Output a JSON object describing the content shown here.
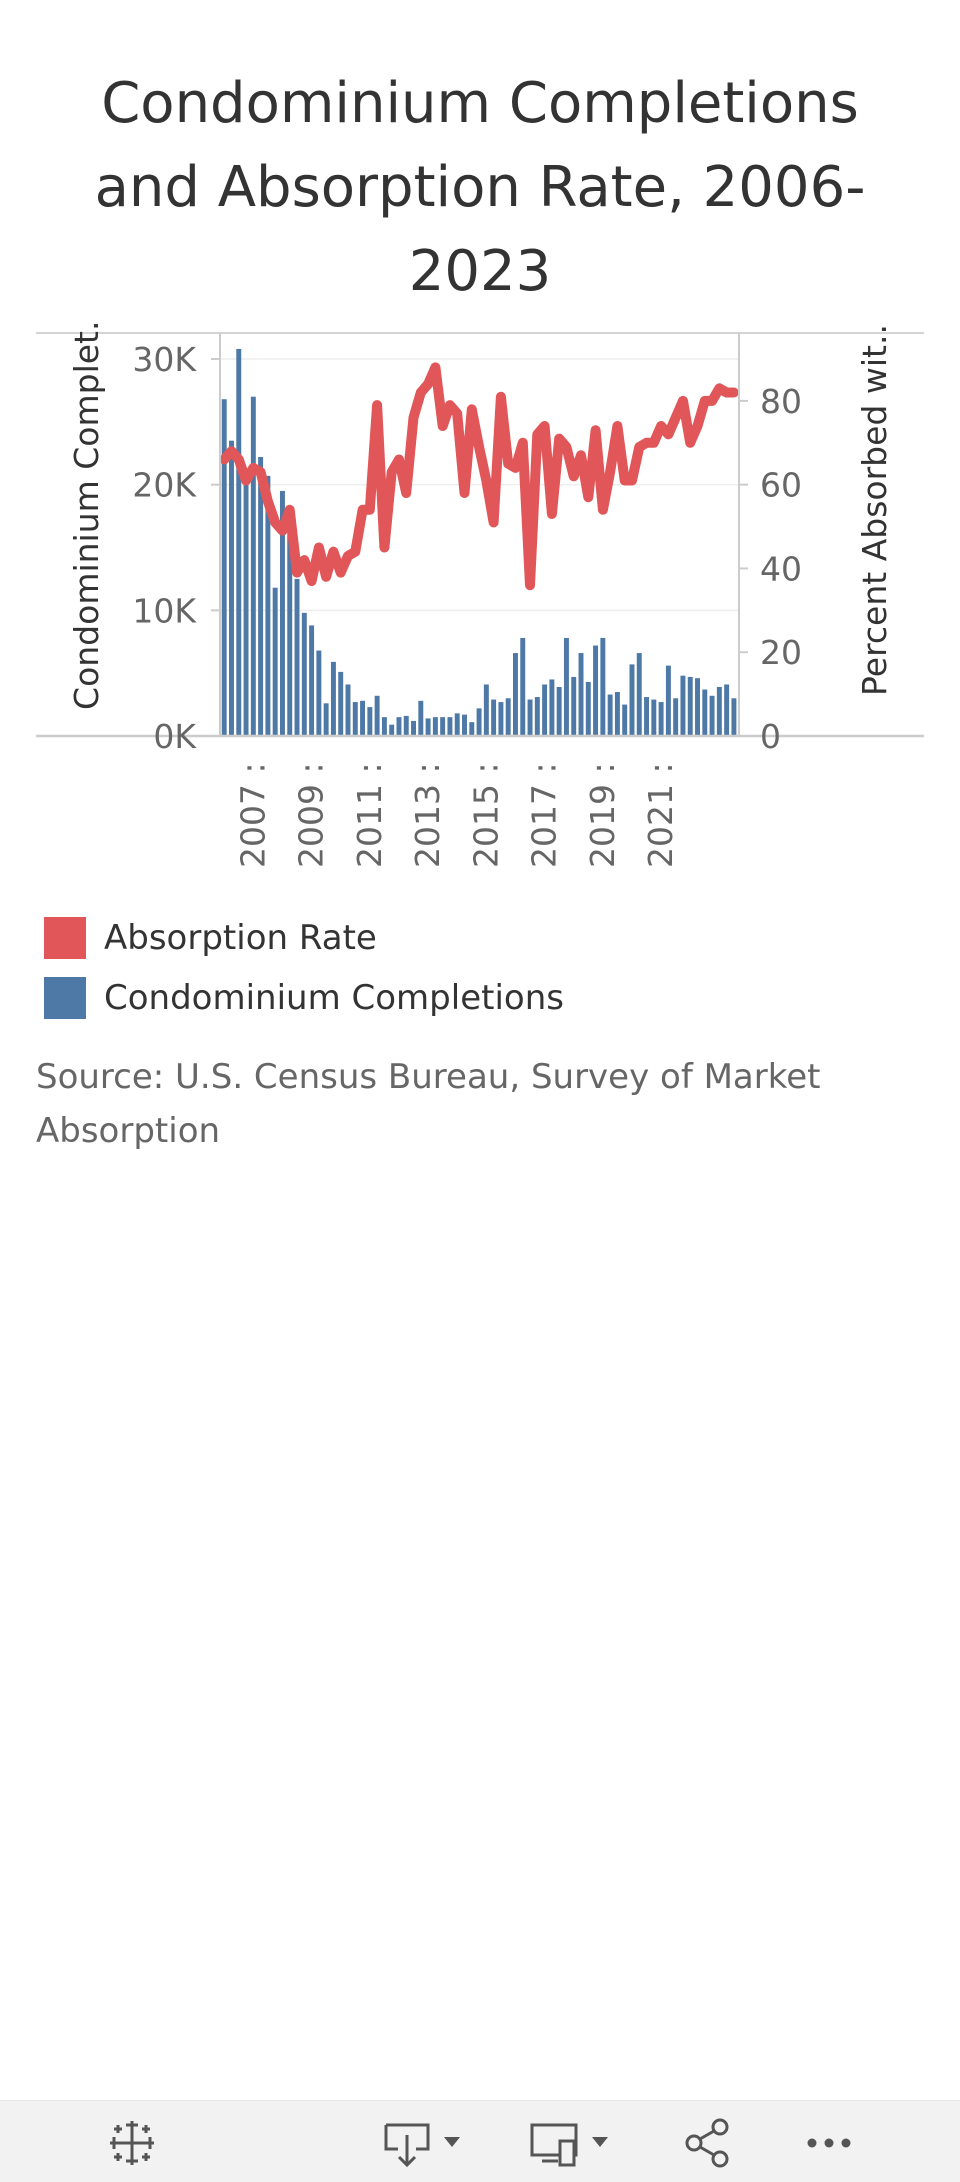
{
  "title": "Condominium Completions and Absorption Rate, 2006-2023",
  "source": "Source: U.S. Census Bureau, Survey of Market Absorption",
  "legend": [
    {
      "label": "Absorption Rate",
      "color": "#e15759"
    },
    {
      "label": "Condominium Completions",
      "color": "#4e79a7"
    }
  ],
  "toolbar": {
    "icons": [
      "tableau-logo-icon",
      "download-icon",
      "device-layout-icon",
      "share-icon",
      "more-icon"
    ]
  },
  "chart_data": {
    "type": "bar",
    "title": "Condominium Completions and Absorption Rate, 2006-2023",
    "y_left_label": "Condominium Complet..",
    "y_right_label": "Percent Absorbed wit..",
    "y_left_ticks": [
      "0K",
      "10K",
      "20K",
      "30K"
    ],
    "y_right_ticks": [
      "0",
      "20",
      "40",
      "60",
      "80"
    ],
    "x_tick_labels": [
      "2007 :",
      "2009 :",
      "2011 :",
      "2013 :",
      "2015 :",
      "2017 :",
      "2019 :",
      "2021 :"
    ],
    "ylim_left": [
      0,
      30000
    ],
    "ylim_right": [
      0,
      90
    ],
    "x_range": [
      2006.0,
      2023.75
    ],
    "grid": true,
    "legend_placement": "bottom-left",
    "series": [
      {
        "name": "Condominium Completions",
        "type": "bar",
        "axis": "left",
        "x": [
          2006.0,
          2006.25,
          2006.5,
          2006.75,
          2007.0,
          2007.25,
          2007.5,
          2007.75,
          2008.0,
          2008.25,
          2008.5,
          2008.75,
          2009.0,
          2009.25,
          2009.5,
          2009.75,
          2010.0,
          2010.25,
          2010.5,
          2010.75,
          2011.0,
          2011.25,
          2011.5,
          2011.75,
          2012.0,
          2012.25,
          2012.5,
          2012.75,
          2013.0,
          2013.25,
          2013.5,
          2013.75,
          2014.0,
          2014.25,
          2014.5,
          2014.75,
          2015.0,
          2015.25,
          2015.5,
          2015.75,
          2016.0,
          2016.25,
          2016.5,
          2016.75,
          2017.0,
          2017.25,
          2017.5,
          2017.75,
          2018.0,
          2018.25,
          2018.5,
          2018.75,
          2019.0,
          2019.25,
          2019.5,
          2019.75,
          2020.0,
          2020.25,
          2020.5,
          2020.75,
          2021.0,
          2021.25,
          2021.5,
          2021.75,
          2022.0,
          2022.25,
          2022.5,
          2022.75,
          2023.0,
          2023.25,
          2023.5
        ],
        "values": [
          26800,
          23500,
          30800,
          21200,
          27000,
          22200,
          20700,
          11800,
          19500,
          17000,
          12500,
          9800,
          8800,
          6800,
          2600,
          5900,
          5100,
          4100,
          2700,
          2800,
          2300,
          3200,
          1500,
          900,
          1500,
          1600,
          1200,
          2800,
          1400,
          1500,
          1500,
          1500,
          1800,
          1700,
          1100,
          2200,
          4100,
          2900,
          2700,
          3000,
          6600,
          7800,
          2900,
          3100,
          4100,
          4500,
          3900,
          7800,
          4700,
          6600,
          4300,
          7200,
          7800,
          3300,
          3500,
          2500,
          5700,
          6600,
          3100,
          2900,
          2700,
          5600,
          3000,
          4800,
          4700,
          4600,
          3700,
          3200,
          3900,
          4100,
          3000
        ]
      },
      {
        "name": "Absorption Rate",
        "type": "line",
        "axis": "right",
        "x": [
          2006.0,
          2006.25,
          2006.5,
          2006.75,
          2007.0,
          2007.25,
          2007.5,
          2007.75,
          2008.0,
          2008.25,
          2008.5,
          2008.75,
          2009.0,
          2009.25,
          2009.5,
          2009.75,
          2010.0,
          2010.25,
          2010.5,
          2010.75,
          2011.0,
          2011.25,
          2011.5,
          2011.75,
          2012.0,
          2012.25,
          2012.5,
          2012.75,
          2013.0,
          2013.25,
          2013.5,
          2013.75,
          2014.0,
          2014.25,
          2014.5,
          2014.75,
          2015.0,
          2015.25,
          2015.5,
          2015.75,
          2016.0,
          2016.25,
          2016.5,
          2016.75,
          2017.0,
          2017.25,
          2017.5,
          2017.75,
          2018.0,
          2018.25,
          2018.5,
          2018.75,
          2019.0,
          2019.25,
          2019.5,
          2019.75,
          2020.0,
          2020.25,
          2020.5,
          2020.75,
          2021.0,
          2021.25,
          2021.5,
          2021.75,
          2022.0,
          2022.25,
          2022.5,
          2022.75,
          2023.0,
          2023.25,
          2023.5
        ],
        "values": [
          66,
          68,
          66,
          61,
          64,
          63,
          56,
          51,
          49,
          54,
          39,
          42,
          37,
          45,
          38,
          44,
          39,
          43,
          44,
          54,
          54,
          79,
          45,
          63,
          66,
          58,
          76,
          82,
          84,
          88,
          74,
          79,
          77,
          58,
          78,
          69,
          61,
          51,
          81,
          65,
          64,
          70,
          36,
          72,
          74,
          53,
          71,
          69,
          62,
          67,
          57,
          73,
          54,
          63,
          74,
          61,
          61,
          69,
          70,
          70,
          74,
          72,
          76,
          80,
          70,
          74,
          80,
          80,
          83,
          82,
          82
        ]
      }
    ]
  }
}
